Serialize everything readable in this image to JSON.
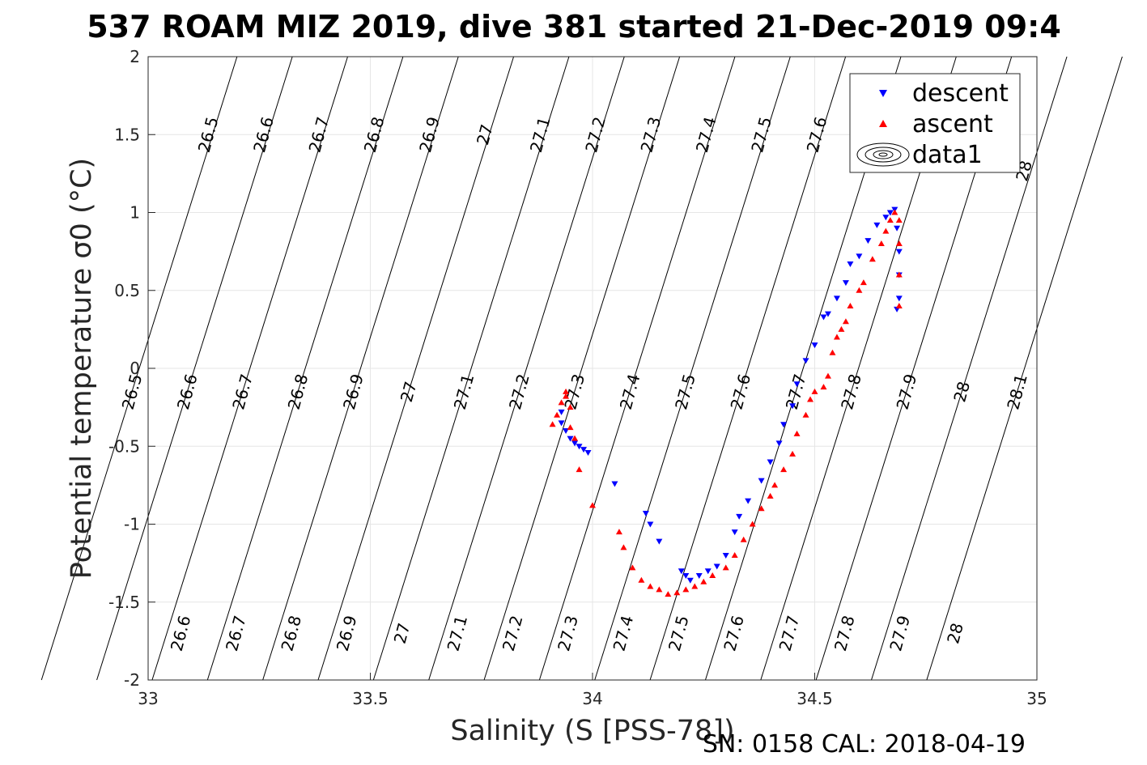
{
  "chart_data": {
    "type": "scatter",
    "title": "537 ROAM MIZ 2019, dive 381 started 21-Dec-2019 09:4",
    "xlabel": "Salinity (S [PSS-78])",
    "ylabel": "Potential temperature σ0 (°C)",
    "xlim": [
      33,
      35
    ],
    "ylim": [
      -2,
      2
    ],
    "x_ticks": [
      "33",
      "33.5",
      "34",
      "34.5",
      "35"
    ],
    "y_ticks": [
      "2",
      "1.5",
      "1",
      "0.5",
      "0",
      "-0.5",
      "-1",
      "-1.5",
      "-2"
    ],
    "grid": true,
    "legend_position": "top-right",
    "legend": [
      "descent",
      "ascent",
      "data1"
    ],
    "footer": "SN: 0158  CAL: 2018-04-19",
    "colors": {
      "descent": "#0000ff",
      "ascent": "#ff0000",
      "contour": "#000000",
      "grid": "#e6e6e6"
    },
    "contour_labels": {
      "top": [
        "26.5",
        "26.6",
        "26.7",
        "26.8",
        "26.9",
        "27",
        "27.1",
        "27.2",
        "27.3",
        "27.4",
        "27.5",
        "27.6",
        "28"
      ],
      "middle": [
        "26.5",
        "26.6",
        "26.7",
        "26.8",
        "26.9",
        "27",
        "27.1",
        "27.2",
        "27.3",
        "27.4",
        "27.5",
        "27.6",
        "27.7",
        "27.8",
        "27.9",
        "28",
        "28.1"
      ],
      "bottom": [
        "26.6",
        "26.7",
        "26.8",
        "26.9",
        "27",
        "27.1",
        "27.2",
        "27.3",
        "27.4",
        "27.5",
        "27.6",
        "27.7",
        "27.8",
        "27.9",
        "28"
      ]
    },
    "series": [
      {
        "name": "descent",
        "marker": "triangle-down",
        "x": [
          33.93,
          33.93,
          33.94,
          33.95,
          33.96,
          33.97,
          33.98,
          33.99,
          34.05,
          34.12,
          34.13,
          34.15,
          34.2,
          34.21,
          34.22,
          34.24,
          34.26,
          34.28,
          34.3,
          34.32,
          34.33,
          34.35,
          34.38,
          34.4,
          34.42,
          34.43,
          34.45,
          34.46,
          34.48,
          34.5,
          34.52,
          34.53,
          34.55,
          34.57,
          34.58,
          34.6,
          34.62,
          34.64,
          34.66,
          34.67,
          34.68,
          34.685,
          34.69,
          34.69,
          34.69,
          34.685
        ],
        "y": [
          -0.28,
          -0.35,
          -0.4,
          -0.45,
          -0.48,
          -0.5,
          -0.52,
          -0.54,
          -0.74,
          -0.93,
          -1.0,
          -1.11,
          -1.3,
          -1.33,
          -1.36,
          -1.33,
          -1.3,
          -1.27,
          -1.2,
          -1.05,
          -0.95,
          -0.85,
          -0.72,
          -0.6,
          -0.48,
          -0.36,
          -0.24,
          -0.1,
          0.05,
          0.15,
          0.33,
          0.35,
          0.45,
          0.55,
          0.67,
          0.72,
          0.82,
          0.92,
          0.97,
          1.0,
          1.02,
          0.9,
          0.75,
          0.6,
          0.45,
          0.38
        ]
      },
      {
        "name": "ascent",
        "marker": "triangle-up",
        "x": [
          33.91,
          33.92,
          33.93,
          33.94,
          33.94,
          33.95,
          33.95,
          33.96,
          33.97,
          34.0,
          34.06,
          34.07,
          34.09,
          34.11,
          34.13,
          34.15,
          34.17,
          34.19,
          34.21,
          34.23,
          34.25,
          34.27,
          34.3,
          34.32,
          34.34,
          34.36,
          34.38,
          34.4,
          34.41,
          34.43,
          34.45,
          34.46,
          34.48,
          34.49,
          34.5,
          34.52,
          34.53,
          34.54,
          34.55,
          34.56,
          34.57,
          34.58,
          34.6,
          34.61,
          34.63,
          34.65,
          34.66,
          34.67,
          34.68,
          34.69,
          34.69,
          34.69,
          34.69
        ],
        "y": [
          -0.36,
          -0.3,
          -0.22,
          -0.18,
          -0.15,
          -0.25,
          -0.38,
          -0.45,
          -0.65,
          -0.88,
          -1.05,
          -1.15,
          -1.28,
          -1.36,
          -1.4,
          -1.42,
          -1.45,
          -1.44,
          -1.42,
          -1.4,
          -1.37,
          -1.33,
          -1.28,
          -1.2,
          -1.1,
          -1.0,
          -0.9,
          -0.82,
          -0.75,
          -0.65,
          -0.55,
          -0.42,
          -0.3,
          -0.2,
          -0.15,
          -0.12,
          -0.05,
          0.1,
          0.2,
          0.25,
          0.3,
          0.4,
          0.5,
          0.55,
          0.7,
          0.8,
          0.88,
          0.95,
          1.0,
          0.95,
          0.8,
          0.6,
          0.4
        ]
      }
    ]
  }
}
